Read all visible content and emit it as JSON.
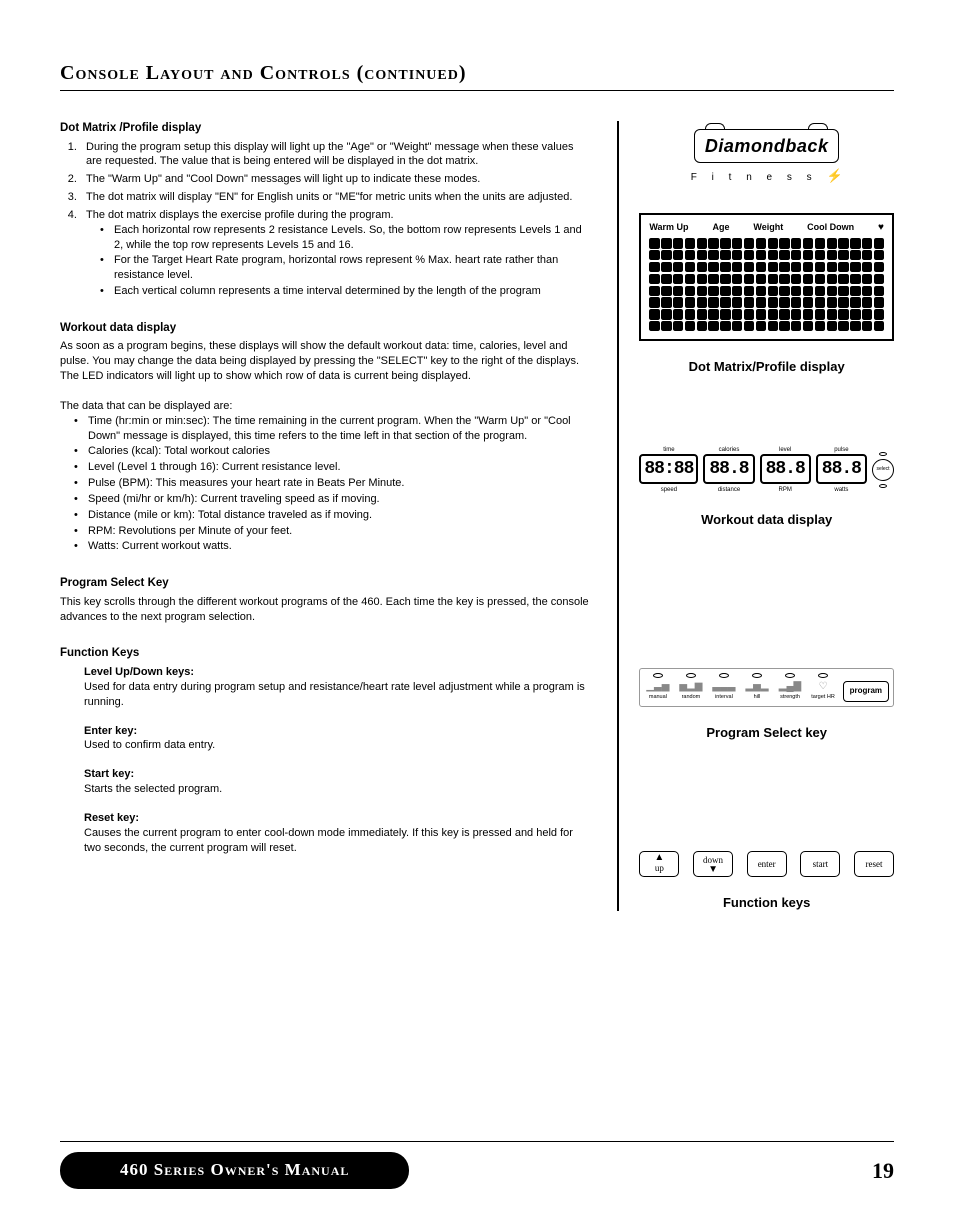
{
  "title": "Console Layout and Controls (continued)",
  "left": {
    "s1": {
      "heading": "Dot Matrix /Profile display",
      "items": [
        "During the program setup this display will light up the \"Age\" or \"Weight\" message when these values are requested.  The value that is being entered will be displayed in the dot matrix.",
        "The \"Warm Up\" and \"Cool Down\" messages will light up to indicate these modes.",
        "The dot matrix will display \"EN\" for English units or \"ME\"for metric units when the units are adjusted.",
        "The dot matrix displays the exercise profile during the program."
      ],
      "sub": [
        "Each horizontal row represents 2 resistance Levels.  So, the bottom row represents Levels 1 and 2, while the top row represents Levels 15 and 16.",
        "For the Target Heart Rate program, horizontal rows represent % Max. heart rate rather than resistance level.",
        "Each vertical column represents a time interval determined by the length of the program"
      ]
    },
    "s2": {
      "heading": "Workout data display",
      "body": "As soon as a program begins, these displays will show the default workout data: time, calories, level and pulse.  You may change the data being displayed by pressing the \"SELECT\" key to the right of the displays.  The LED indicators will light up to show which row of data is current being displayed.",
      "lead": "The data that can be displayed are:",
      "items": [
        "Time (hr:min or min:sec):  The time remaining in the current program.  When the \"Warm Up\" or \"Cool Down\" message is displayed, this time refers to the time left in that section of the program.",
        "Calories (kcal):  Total workout calories",
        "Level (Level 1 through 16):  Current resistance level.",
        "Pulse (BPM):  This measures your heart rate in Beats Per Minute.",
        "Speed (mi/hr or km/h):  Current traveling speed as if moving.",
        "Distance (mile or km):  Total distance traveled as if moving.",
        "RPM:  Revolutions per Minute of your feet.",
        "Watts:  Current workout watts."
      ]
    },
    "s3": {
      "heading": "Program Select Key",
      "body": "This key scrolls through the different workout programs of the 460.  Each time the key is pressed, the console advances to the next program selection."
    },
    "s4": {
      "heading": "Function Keys",
      "keys": [
        {
          "name": "Level Up/Down keys:",
          "body": "Used for data entry during program setup and resistance/heart rate level adjustment while a program is running."
        },
        {
          "name": "Enter key:",
          "body": "Used to confirm data entry."
        },
        {
          "name": "Start key:",
          "body": "Starts the selected program."
        },
        {
          "name": "Reset key:",
          "body": "Causes the current program to enter cool-down mode immediately.  If this key is pressed and held for two seconds, the current program will reset."
        }
      ]
    }
  },
  "right": {
    "logo": "Diamondback",
    "logo_sub": "Fitness",
    "dm_labels": [
      "Warm Up",
      "Age",
      "Weight",
      "Cool Down"
    ],
    "fig1_label": "Dot Matrix/Profile display",
    "workout": {
      "top": [
        "time",
        "calories",
        "level",
        "pulse"
      ],
      "vals": [
        "88:88",
        "88.8",
        "88.8",
        "88.8"
      ],
      "bot": [
        "speed",
        "distance",
        "RPM",
        "watts"
      ],
      "select": "select"
    },
    "fig2_label": "Workout data display",
    "programs": [
      "manual",
      "random",
      "interval",
      "hill",
      "strength",
      "target HR"
    ],
    "prog_btn": "program",
    "fig3_label": "Program Select key",
    "fn_buttons": [
      "up",
      "down",
      "enter",
      "start",
      "reset"
    ],
    "fig4_label": "Function keys"
  },
  "footer": {
    "text": "460 Series Owner's Manual",
    "page": "19"
  },
  "colors": {
    "text": "#000000",
    "bg": "#ffffff",
    "pill_bg": "#000000",
    "pill_fg": "#ffffff"
  }
}
